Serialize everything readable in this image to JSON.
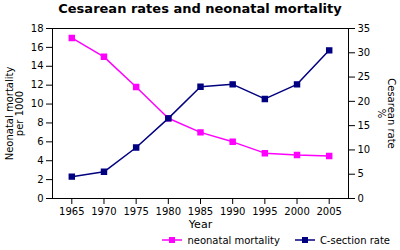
{
  "chart_data": {
    "type": "line",
    "title": "Cesarean rates and neonatal mortality",
    "x": [
      1965,
      1970,
      1975,
      1980,
      1985,
      1990,
      1995,
      2000,
      2005
    ],
    "xlabel": "Year",
    "ylabel": "Neonatal mortality\nper 1000",
    "y2label": "Cesarean rate\n%",
    "series": [
      {
        "name": "neonatal mortality",
        "color": "#ff00ff",
        "marker": "square",
        "values": [
          17.0,
          15.0,
          11.8,
          8.5,
          7.0,
          6.0,
          4.8,
          4.6,
          4.5
        ]
      },
      {
        "name": "C-section rate",
        "color": "#000080",
        "marker": "square",
        "axis": "y2",
        "values": [
          4.5,
          5.5,
          10.5,
          16.5,
          23.0,
          23.5,
          20.5,
          23.5,
          30.5
        ]
      }
    ],
    "xlim": [
      1962,
      2008
    ],
    "xticks": [
      1965,
      1970,
      1975,
      1980,
      1985,
      1990,
      1995,
      2000,
      2005
    ],
    "ylim": [
      0,
      18
    ],
    "yticks": [
      0,
      2,
      4,
      6,
      8,
      10,
      12,
      14,
      16,
      18
    ],
    "y2lim": [
      0,
      35
    ],
    "y2ticks": [
      0,
      5,
      10,
      15,
      20,
      25,
      30,
      35
    ],
    "legend": "lower right"
  }
}
